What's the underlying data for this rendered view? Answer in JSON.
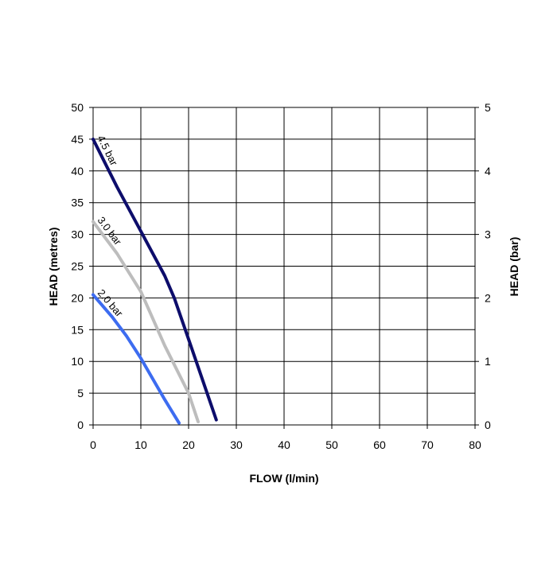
{
  "chart_data": {
    "type": "line",
    "xlabel": "FLOW (l/min)",
    "ylabel": "HEAD (metres)",
    "y2label": "HEAD (bar)",
    "xlim": [
      0,
      80
    ],
    "ylim": [
      0,
      50
    ],
    "y2lim": [
      0,
      5
    ],
    "x_ticks": [
      "0",
      "10",
      "20",
      "30",
      "40",
      "50",
      "60",
      "70",
      "80"
    ],
    "y_ticks": [
      "0",
      "5",
      "10",
      "15",
      "20",
      "25",
      "30",
      "35",
      "40",
      "45",
      "50"
    ],
    "y2_ticks": [
      "0",
      "1",
      "2",
      "3",
      "4",
      "5"
    ],
    "grid": true,
    "series": [
      {
        "name": "4.5 bar",
        "color": "#0d0d6b",
        "points": [
          [
            0,
            45
          ],
          [
            5,
            37.5
          ],
          [
            10,
            30.5
          ],
          [
            15,
            23.5
          ],
          [
            17,
            20
          ],
          [
            20,
            13.5
          ],
          [
            25.8,
            0.8
          ]
        ]
      },
      {
        "name": "3.0 bar",
        "color": "#bdbdbd",
        "points": [
          [
            0,
            32
          ],
          [
            5,
            27
          ],
          [
            10,
            21
          ],
          [
            15,
            12.5
          ],
          [
            20,
            5
          ],
          [
            22,
            0.5
          ]
        ]
      },
      {
        "name": "2.0 bar",
        "color": "#3d6cf0",
        "points": [
          [
            0,
            20.5
          ],
          [
            4,
            17
          ],
          [
            7,
            14
          ],
          [
            10,
            10.5
          ],
          [
            15,
            4
          ],
          [
            18,
            0.3
          ]
        ]
      }
    ]
  }
}
